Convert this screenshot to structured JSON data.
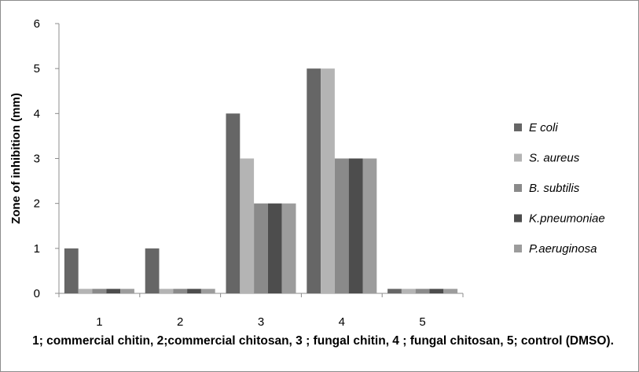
{
  "chart_data": {
    "type": "bar",
    "categories": [
      "1",
      "2",
      "3",
      "4",
      "5"
    ],
    "series": [
      {
        "name": "E coli",
        "color": "#666666",
        "values": [
          1,
          1,
          4,
          5,
          0.1
        ]
      },
      {
        "name": "S. aureus",
        "color": "#b4b4b4",
        "values": [
          0.1,
          0.1,
          3,
          5,
          0.1
        ]
      },
      {
        "name": "B. subtilis",
        "color": "#8a8a8a",
        "values": [
          0.1,
          0.1,
          2,
          3,
          0.1
        ]
      },
      {
        "name": "K.pneumoniae",
        "color": "#4d4d4d",
        "values": [
          0.1,
          0.1,
          2,
          3,
          0.1
        ]
      },
      {
        "name": "P.aeruginosa",
        "color": "#9c9c9c",
        "values": [
          0.1,
          0.1,
          2,
          3,
          0.1
        ]
      }
    ],
    "ylabel": "Zone of inhibition  (mm)",
    "xlabel": "1; commercial chitin, 2;commercial chitosan, 3 ; fungal chitin, 4 ; fungal chitosan, 5; control (DMSO).",
    "ylim": [
      0,
      6
    ],
    "yticks": [
      0,
      1,
      2,
      3,
      4,
      5,
      6
    ],
    "grid": false,
    "legend_position": "right"
  }
}
